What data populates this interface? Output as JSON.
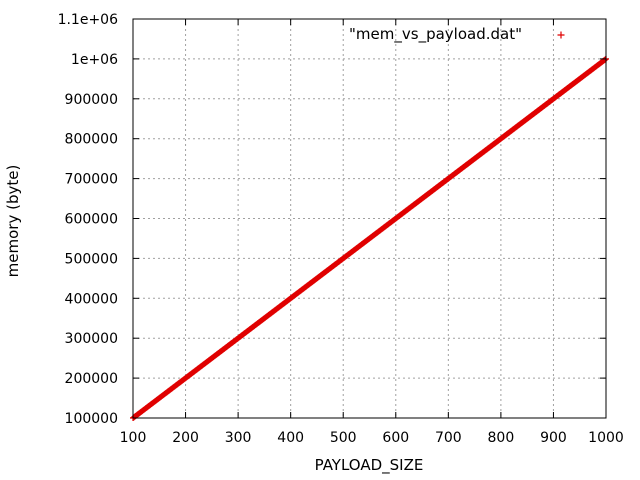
{
  "chart_data": {
    "type": "scatter",
    "title": "",
    "xlabel": "PAYLOAD_SIZE",
    "ylabel": "memory (byte)",
    "xlim": [
      100,
      1000
    ],
    "ylim": [
      100000,
      1100000
    ],
    "grid": true,
    "legend_position": "top-right",
    "x_ticks": [
      100,
      200,
      300,
      400,
      500,
      600,
      700,
      800,
      900,
      1000
    ],
    "x_tick_labels": [
      "100",
      "200",
      "300",
      "400",
      "500",
      "600",
      "700",
      "800",
      "900",
      "1000"
    ],
    "y_ticks": [
      100000,
      200000,
      300000,
      400000,
      500000,
      600000,
      700000,
      800000,
      900000,
      1000000,
      1100000
    ],
    "y_tick_labels": [
      "100000",
      "200000",
      "300000",
      "400000",
      "500000",
      "600000",
      "700000",
      "800000",
      "900000",
      "1e+06",
      "1.1e+06"
    ],
    "series": [
      {
        "name": "\"mem_vs_payload.dat\"",
        "marker": "+",
        "color": "#e00000",
        "x_start": 100,
        "x_end": 1000,
        "x_step": 1,
        "y_start": 100000,
        "y_end": 1000000
      }
    ]
  }
}
